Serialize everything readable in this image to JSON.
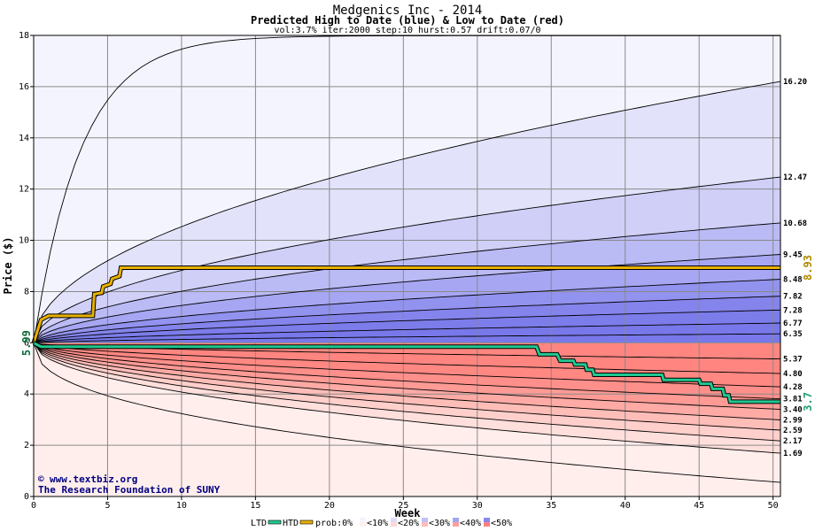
{
  "chart_data": {
    "type": "area",
    "title": "Medgenics Inc - 2014",
    "subtitle": "Predicted High to Date (blue) &  Low to Date (red)",
    "meta": "vol:3.7% iter:2000 step:10 hurst:0.57 drift:0.07/0",
    "xlabel": "Week",
    "ylabel": "Price ($)",
    "xlim": [
      0,
      50.5
    ],
    "ylim": [
      0,
      18
    ],
    "x_ticks": [
      "0",
      "5",
      "10",
      "15",
      "20",
      "25",
      "30",
      "35",
      "40",
      "45",
      "50"
    ],
    "y_ticks": [
      "0",
      "2",
      "4",
      "6",
      "8",
      "10",
      "12",
      "14",
      "16",
      "18"
    ],
    "grid": true,
    "start_price": "5.99",
    "start_value": 5.99,
    "high_band_end_labels": [
      "16.20",
      "12.47",
      "10.68",
      "9.45",
      "8.48",
      "7.82",
      "7.28",
      "6.77",
      "6.35"
    ],
    "low_band_end_labels": [
      "5.37",
      "4.80",
      "4.28",
      "3.81",
      "3.40",
      "2.99",
      "2.59",
      "2.17",
      "1.69"
    ],
    "extreme_high_end": 18.0,
    "extreme_low_end": 0.55,
    "series": [
      {
        "name": "HTD",
        "color": "#e8b000",
        "end_label": "8.93",
        "points": [
          [
            0,
            5.99
          ],
          [
            0.5,
            6.9
          ],
          [
            1,
            7.05
          ],
          [
            4,
            7.05
          ],
          [
            4.1,
            7.9
          ],
          [
            4.6,
            7.95
          ],
          [
            4.7,
            8.2
          ],
          [
            5.2,
            8.3
          ],
          [
            5.3,
            8.5
          ],
          [
            5.8,
            8.6
          ],
          [
            5.9,
            8.93
          ],
          [
            50.5,
            8.93
          ]
        ]
      },
      {
        "name": "LTD",
        "color": "#20c890",
        "end_label": "3.7",
        "points": [
          [
            0,
            5.99
          ],
          [
            0.5,
            5.85
          ],
          [
            34,
            5.85
          ],
          [
            34.2,
            5.55
          ],
          [
            35.4,
            5.55
          ],
          [
            35.6,
            5.3
          ],
          [
            36.5,
            5.3
          ],
          [
            36.6,
            5.15
          ],
          [
            37.3,
            5.15
          ],
          [
            37.4,
            4.95
          ],
          [
            37.8,
            4.95
          ],
          [
            37.9,
            4.75
          ],
          [
            42.5,
            4.75
          ],
          [
            42.6,
            4.55
          ],
          [
            45,
            4.55
          ],
          [
            45.1,
            4.4
          ],
          [
            45.8,
            4.4
          ],
          [
            45.9,
            4.2
          ],
          [
            46.6,
            4.2
          ],
          [
            46.7,
            3.95
          ],
          [
            47,
            3.95
          ],
          [
            47.1,
            3.7
          ],
          [
            50.5,
            3.7
          ]
        ]
      }
    ],
    "legend": {
      "items": [
        "LTD",
        "HTD",
        "prob:0%",
        "<10%",
        "<20%",
        "<30%",
        "<40%",
        "<50%"
      ],
      "blue_swatches": [
        "#f4f4ff",
        "#dcdcfa",
        "#c0c0f6",
        "#a4a4f2",
        "#8888ee"
      ],
      "red_swatches": [
        "#fff0ee",
        "#ffd8d6",
        "#ffbcba",
        "#ff9e9c",
        "#ff8080"
      ]
    },
    "colors": {
      "high_bands": [
        "#f4f4fe",
        "#e2e2fb",
        "#cfcff8",
        "#babaf5",
        "#a6a6f2",
        "#9292ef",
        "#8484ec",
        "#7c7ceb",
        "#7878ea"
      ],
      "low_bands": [
        "#ffeeec",
        "#ffdfdc",
        "#ffcfcb",
        "#ffbdb8",
        "#ffaaa5",
        "#ff9a95",
        "#ff8f8a",
        "#ff8883",
        "#ff8580"
      ]
    }
  },
  "credits": {
    "site": "www.textbiz.org",
    "org": "The Research Foundation of SUNY"
  }
}
